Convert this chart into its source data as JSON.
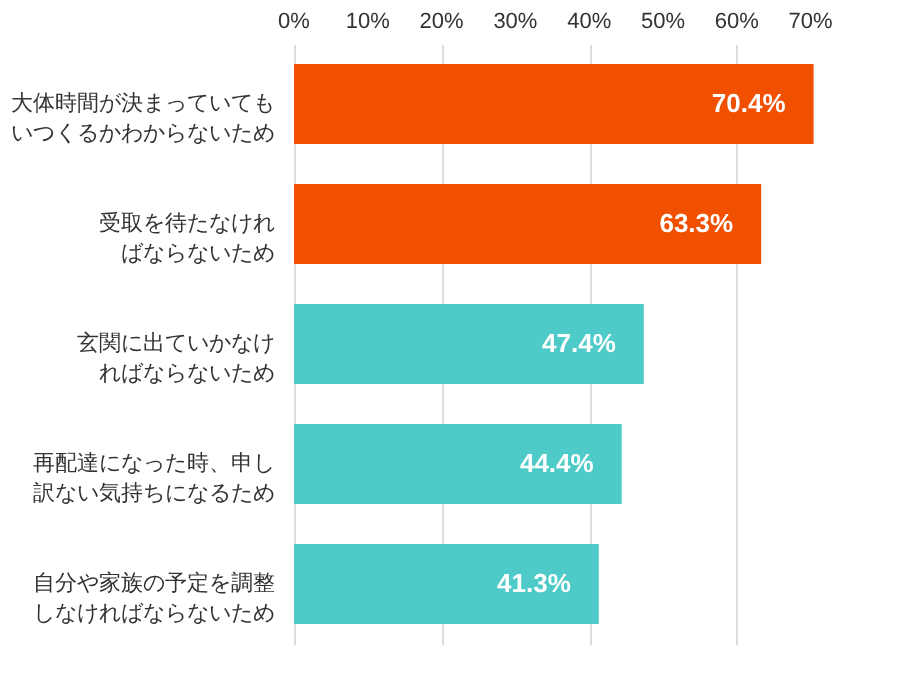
{
  "chart_data": {
    "type": "bar",
    "orientation": "horizontal",
    "categories": [
      "大体時間が決まっていてもいつくるかわからないため",
      "受取を待たなければならないため",
      "玄関に出ていかなければならないため",
      "再配達になった時、申し訳ない気持ちになるため",
      "自分や家族の予定を調整しなければならないため"
    ],
    "values": [
      70.4,
      63.3,
      47.4,
      44.4,
      41.3
    ],
    "value_labels": [
      "70.4%",
      "63.3%",
      "47.4%",
      "44.4%",
      "41.3%"
    ],
    "colors": [
      "#f05000",
      "#f05000",
      "#4ecbc8",
      "#4ecbc8",
      "#4ecbc8"
    ],
    "xlim": [
      0,
      71
    ],
    "xticks": [
      {
        "value": 0,
        "label": "0%"
      },
      {
        "value": 10,
        "label": "10%"
      },
      {
        "value": 20,
        "label": "20%"
      },
      {
        "value": 30,
        "label": "30%"
      },
      {
        "value": 40,
        "label": "40%"
      },
      {
        "value": 50,
        "label": "50%"
      },
      {
        "value": 60,
        "label": "60%"
      },
      {
        "value": 70,
        "label": "70%"
      }
    ],
    "grid": "x"
  }
}
